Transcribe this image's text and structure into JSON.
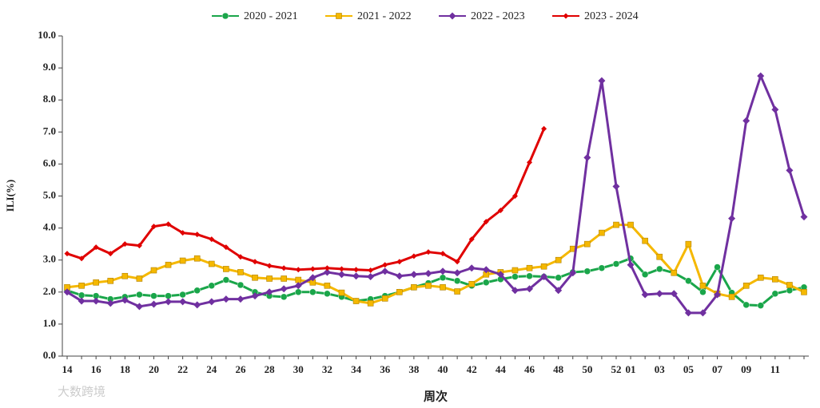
{
  "chart_data": {
    "type": "line",
    "ylabel": "ILI(%)",
    "xlabel": "周次",
    "watermark": "大数跨境",
    "categories": [
      "14",
      null,
      "16",
      null,
      "18",
      null,
      "20",
      null,
      "22",
      null,
      "24",
      null,
      "26",
      null,
      "28",
      null,
      "30",
      null,
      "32",
      null,
      "34",
      null,
      "36",
      null,
      "38",
      null,
      "40",
      null,
      "42",
      null,
      "44",
      null,
      "46",
      null,
      "48",
      null,
      "50",
      null,
      "52",
      "01",
      null,
      "03",
      null,
      "05",
      null,
      "07",
      null,
      "09",
      null,
      "11",
      null,
      null
    ],
    "ylim": [
      0,
      10
    ],
    "yticks": [
      {
        "value": 0,
        "label": "0.0"
      },
      {
        "value": 1,
        "label": "1.0"
      },
      {
        "value": 2,
        "label": "2.0"
      },
      {
        "value": 3,
        "label": "3.0"
      },
      {
        "value": 4,
        "label": "4.0"
      },
      {
        "value": 5,
        "label": "5.0"
      },
      {
        "value": 6,
        "label": "6.0"
      },
      {
        "value": 7,
        "label": "7.0"
      },
      {
        "value": 8,
        "label": "8.0"
      },
      {
        "value": 9,
        "label": "9.0"
      },
      {
        "value": 10,
        "label": "10.0"
      }
    ],
    "legend": "top",
    "series": [
      {
        "name": "2020 - 2021",
        "color": "#1aa64a",
        "marker": "circle",
        "values": [
          2.05,
          1.9,
          1.88,
          1.78,
          1.85,
          1.92,
          1.88,
          1.88,
          1.92,
          2.05,
          2.2,
          2.38,
          2.22,
          2.0,
          1.88,
          1.85,
          2.0,
          2.0,
          1.95,
          1.85,
          1.72,
          1.78,
          1.88,
          2.0,
          2.15,
          2.28,
          2.45,
          2.35,
          2.2,
          2.3,
          2.4,
          2.48,
          2.5,
          2.48,
          2.45,
          2.62,
          2.65,
          2.75,
          2.88,
          3.05,
          2.55,
          2.72,
          2.6,
          2.35,
          2.0,
          2.78,
          1.98,
          1.6,
          1.58,
          1.95,
          2.05,
          2.15
        ]
      },
      {
        "name": "2021 - 2022",
        "color": "#f5b800",
        "marker": "square",
        "values": [
          2.15,
          2.2,
          2.3,
          2.35,
          2.5,
          2.42,
          2.68,
          2.85,
          2.98,
          3.05,
          2.88,
          2.72,
          2.62,
          2.45,
          2.42,
          2.42,
          2.38,
          2.3,
          2.2,
          1.98,
          1.72,
          1.65,
          1.8,
          2.0,
          2.15,
          2.2,
          2.15,
          2.02,
          2.25,
          2.55,
          2.62,
          2.68,
          2.75,
          2.8,
          3.0,
          3.35,
          3.5,
          3.85,
          4.1,
          4.1,
          3.6,
          3.1,
          2.6,
          3.5,
          2.2,
          1.95,
          1.85,
          2.2,
          2.45,
          2.4,
          2.22,
          2.0
        ]
      },
      {
        "name": "2022 - 2023",
        "color": "#7030a0",
        "marker": "diamond",
        "values": [
          2.0,
          1.72,
          1.72,
          1.65,
          1.75,
          1.55,
          1.62,
          1.7,
          1.7,
          1.6,
          1.7,
          1.78,
          1.78,
          1.88,
          2.0,
          2.1,
          2.2,
          2.45,
          2.62,
          2.55,
          2.5,
          2.48,
          2.65,
          2.5,
          2.55,
          2.58,
          2.65,
          2.6,
          2.75,
          2.7,
          2.55,
          2.05,
          2.1,
          2.48,
          2.05,
          2.6,
          6.2,
          8.6,
          5.3,
          2.85,
          1.92,
          1.95,
          1.95,
          1.35,
          1.35,
          1.92,
          4.3,
          7.35,
          8.75,
          7.7,
          5.8,
          4.35
        ]
      },
      {
        "name": "2023 - 2024",
        "color": "#e00000",
        "marker": "smalldiamond",
        "values": [
          3.2,
          3.05,
          3.4,
          3.2,
          3.5,
          3.45,
          4.05,
          4.12,
          3.85,
          3.8,
          3.65,
          3.4,
          3.1,
          2.95,
          2.82,
          2.75,
          2.7,
          2.72,
          2.75,
          2.72,
          2.7,
          2.68,
          2.85,
          2.95,
          3.12,
          3.25,
          3.2,
          2.95,
          3.65,
          4.2,
          4.55,
          5.0,
          6.05,
          7.1,
          null,
          null,
          null,
          null,
          null,
          null,
          null,
          null,
          null,
          null,
          null,
          null,
          null,
          null,
          null,
          null,
          null,
          null
        ]
      }
    ]
  }
}
